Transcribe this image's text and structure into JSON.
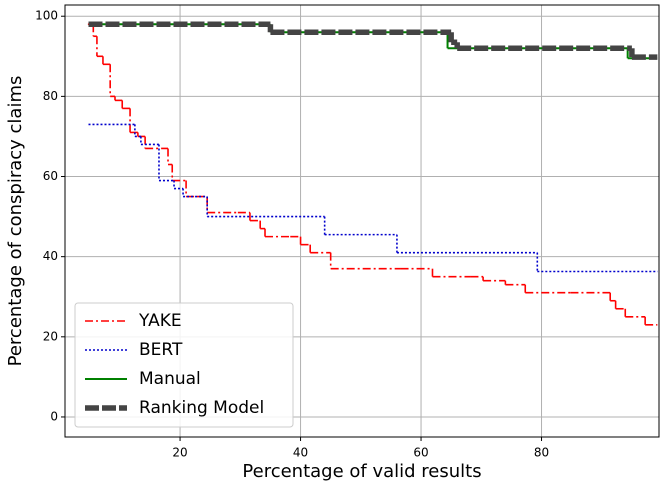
{
  "chart_data": {
    "type": "line",
    "step": "post",
    "xlabel": "Percentage of valid results",
    "ylabel": "Percentage of conspiracy claims",
    "xlim": [
      0.9,
      99.5
    ],
    "ylim": [
      -5,
      102.8
    ],
    "xticks": [
      20,
      40,
      60,
      80
    ],
    "yticks": [
      0,
      20,
      40,
      60,
      80,
      100
    ],
    "grid": true,
    "legend": "lower left",
    "series": [
      {
        "name": "YAKE",
        "color": "#ff0000",
        "style": "dashdot",
        "x": [
          4.7,
          5.6,
          6.2,
          7.2,
          8.4,
          9.2,
          10.4,
          11.7,
          13,
          14.2,
          18,
          18.7,
          21,
          22.8,
          24.5,
          29.6,
          31.6,
          33.3,
          34.1,
          38.3,
          40,
          41.6,
          45,
          56.6,
          61.9,
          68.2,
          70.3,
          74,
          77.3,
          84.8,
          91.4,
          92.3,
          93.9,
          97.2,
          99.2
        ],
        "values": [
          98,
          95,
          90,
          88,
          80,
          79,
          77,
          71,
          70,
          67,
          63,
          59,
          55,
          55,
          51,
          51,
          49,
          47,
          45,
          45,
          43,
          41,
          37,
          37,
          35,
          35,
          34,
          33,
          31,
          31,
          29,
          27,
          25,
          23,
          23
        ]
      },
      {
        "name": "BERT",
        "color": "#0000cc",
        "style": "dotted",
        "x": [
          4.8,
          12.5,
          13.5,
          16.5,
          19,
          20.5,
          24.5,
          44,
          56,
          79.3,
          99.2
        ],
        "values": [
          73,
          70,
          68,
          59,
          57,
          55,
          50,
          45.5,
          41,
          36.3,
          36.3
        ]
      },
      {
        "name": "Manual",
        "color": "#008000",
        "style": "solid",
        "x": [
          4.8,
          35,
          64.4,
          94.3,
          99.2
        ],
        "values": [
          98,
          96,
          92,
          89.5,
          89.5
        ]
      },
      {
        "name": "Ranking Model",
        "color": "#444444",
        "style": "thick",
        "x": [
          4.8,
          35,
          65,
          66,
          95,
          99.2
        ],
        "values": [
          98,
          96,
          93.5,
          92,
          89.8,
          89.8
        ]
      }
    ]
  }
}
